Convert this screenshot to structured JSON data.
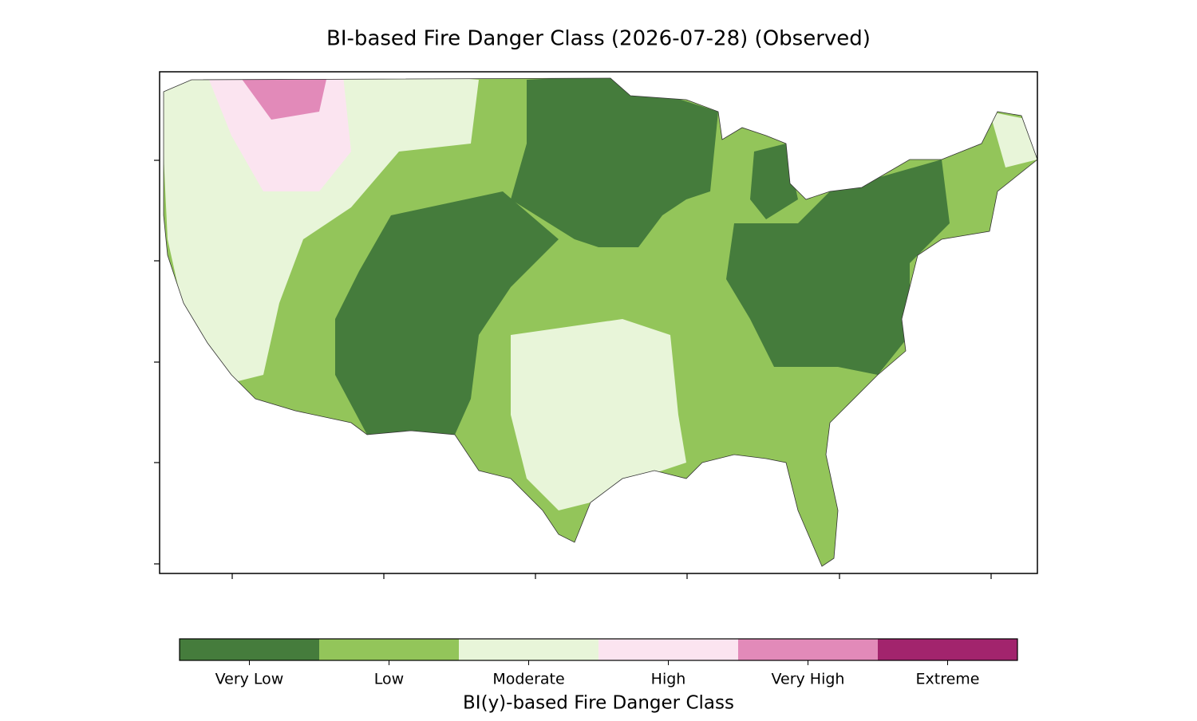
{
  "title": "BI-based Fire Danger Class (2026-07-28) (Observed)",
  "colorbar": {
    "label": "BI(y)-based Fire Danger Class",
    "classes": [
      {
        "name": "Very Low",
        "color": "#457c3c"
      },
      {
        "name": "Low",
        "color": "#93c55a"
      },
      {
        "name": "Moderate",
        "color": "#e8f5d9"
      },
      {
        "name": "High",
        "color": "#fbe4f0"
      },
      {
        "name": "Very High",
        "color": "#e28ab9"
      },
      {
        "name": "Extreme",
        "color": "#a2246d"
      }
    ]
  }
}
